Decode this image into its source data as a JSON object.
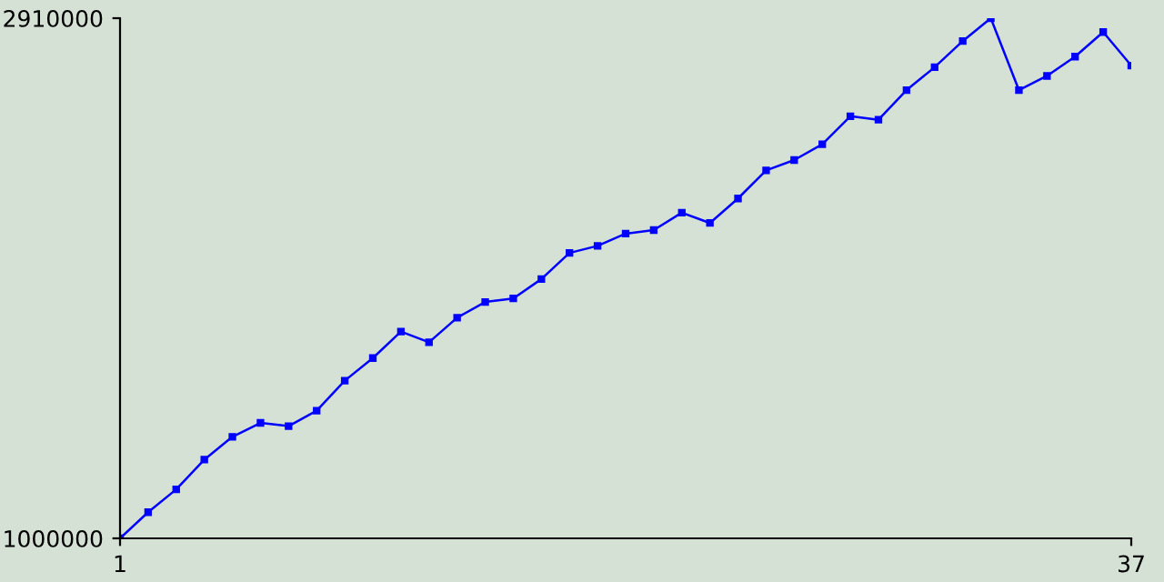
{
  "chart_data": {
    "type": "line",
    "x": [
      1,
      2,
      3,
      4,
      5,
      6,
      7,
      8,
      9,
      10,
      11,
      12,
      13,
      14,
      15,
      16,
      17,
      18,
      19,
      20,
      21,
      22,
      23,
      24,
      25,
      26,
      27,
      28,
      29,
      30,
      31,
      32,
      33,
      34,
      35,
      36,
      37
    ],
    "series": [
      {
        "color": "#0000ff",
        "values": [
          1000000,
          1096000,
          1180000,
          1289000,
          1373000,
          1424000,
          1412000,
          1469000,
          1579000,
          1662000,
          1759000,
          1720000,
          1810000,
          1868000,
          1881000,
          1952000,
          2048000,
          2074000,
          2119000,
          2132000,
          2196000,
          2158000,
          2248000,
          2351000,
          2389000,
          2447000,
          2550000,
          2537000,
          2646000,
          2730000,
          2826000,
          2910000,
          2646000,
          2698000,
          2769000,
          2859000,
          2736000
        ]
      }
    ],
    "xlim": [
      1,
      37
    ],
    "xticks": [
      1,
      37
    ],
    "ylim": [
      1000000,
      2910000
    ],
    "yticks": [
      1000000,
      2910000
    ],
    "marker": "square",
    "line_style": "solid",
    "grid": false
  }
}
